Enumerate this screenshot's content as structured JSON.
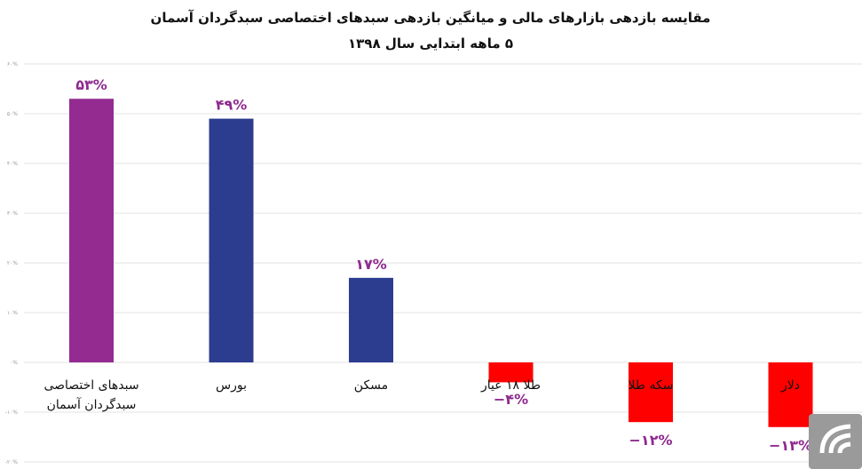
{
  "chart_data": {
    "type": "bar",
    "title": "مقایسه بازدهی بازارهای مالی و میانگین بازدهی سبدهای اختصاصی سبدگردان آسمان",
    "subtitle": "۵ ماهه ابتدایی سال ۱۳۹۸",
    "categories": [
      [
        "سبدهای اختصاصی",
        "سبدگردان آسمان"
      ],
      [
        "بورس"
      ],
      [
        "مسکن"
      ],
      [
        "طلا ۱۸ عیار"
      ],
      [
        "سکه طلا"
      ],
      [
        "دلار"
      ]
    ],
    "values": [
      53,
      49,
      17,
      -4,
      -12,
      -13
    ],
    "value_labels": [
      "۵۳%",
      "۴۹%",
      "۱۷%",
      "−۴%",
      "−۱۲%",
      "−۱۳%"
    ],
    "colors": [
      "#932b91",
      "#2c3d8f",
      "#2c3d8f",
      "#ff0000",
      "#ff0000",
      "#ff0000"
    ],
    "label_color": "#8e2a8f",
    "yticks": [
      -20,
      -10,
      0,
      10,
      20,
      30,
      40,
      50,
      60
    ],
    "ytick_labels": [
      "-۲۰%",
      "-۱۰%",
      "۰%",
      "۱۰%",
      "۲۰%",
      "۳۰%",
      "۴۰%",
      "۵۰%",
      "۶۰%"
    ],
    "ylim": [
      -20,
      60
    ],
    "grid": true,
    "legend": "none",
    "xlabel": "",
    "ylabel": ""
  },
  "watermark": {
    "logo": "sabadgardan-aseman-logo-icon",
    "background": "#999999"
  }
}
